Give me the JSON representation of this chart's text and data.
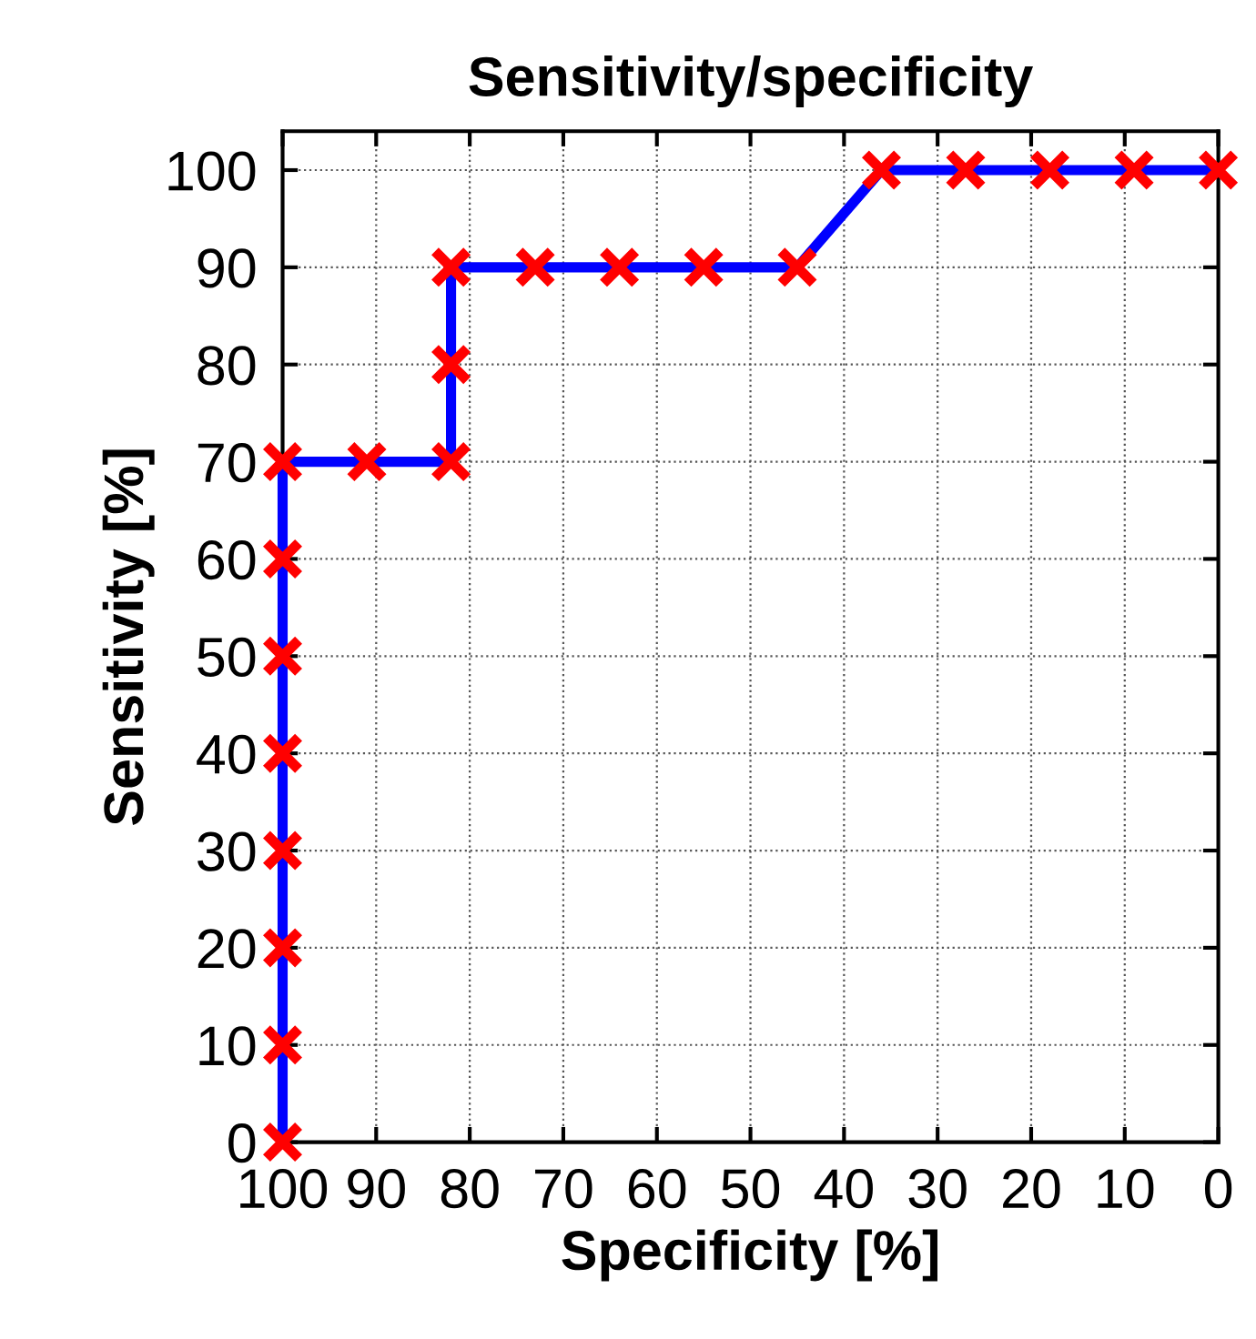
{
  "chart_data": {
    "type": "line",
    "title": "Sensitivity/specificity",
    "xlabel": "Specificity [%]",
    "ylabel": "Sensitivity [%]",
    "x": [
      100,
      100,
      100,
      100,
      100,
      100,
      100,
      100,
      91,
      82,
      82,
      82,
      73,
      64,
      55,
      45,
      36,
      27,
      18,
      9,
      0
    ],
    "series": [
      {
        "color": "#0000ff",
        "marker": "none",
        "line_style": "solid",
        "values": [
          0,
          10,
          20,
          30,
          40,
          50,
          60,
          70,
          70,
          70,
          80,
          90,
          90,
          90,
          90,
          90,
          100,
          100,
          100,
          100,
          100
        ]
      },
      {
        "type": "scatter",
        "color": "#ff0000",
        "marker": "cross",
        "values": [
          0,
          10,
          20,
          30,
          40,
          50,
          60,
          70,
          70,
          70,
          80,
          90,
          90,
          90,
          90,
          90,
          100,
          100,
          100,
          100,
          100
        ]
      }
    ],
    "xlim": [
      100,
      0
    ],
    "ylim": [
      0,
      104
    ],
    "xticks": [
      100,
      90,
      80,
      70,
      60,
      50,
      40,
      30,
      20,
      10,
      0
    ],
    "yticks": [
      0,
      10,
      20,
      30,
      40,
      50,
      60,
      70,
      80,
      90,
      100
    ],
    "grid": true
  }
}
